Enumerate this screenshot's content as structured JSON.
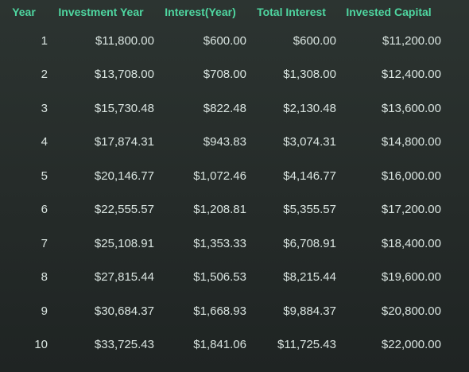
{
  "table": {
    "headers": {
      "year": "Year",
      "investment_year": "Investment Year",
      "interest_year": "Interest(Year)",
      "total_interest": "Total Interest",
      "invested_capital": "Invested Capital"
    },
    "rows": [
      {
        "year": "1",
        "investment_year": "$11,800.00",
        "interest_year": "$600.00",
        "total_interest": "$600.00",
        "invested_capital": "$11,200.00"
      },
      {
        "year": "2",
        "investment_year": "$13,708.00",
        "interest_year": "$708.00",
        "total_interest": "$1,308.00",
        "invested_capital": "$12,400.00"
      },
      {
        "year": "3",
        "investment_year": "$15,730.48",
        "interest_year": "$822.48",
        "total_interest": "$2,130.48",
        "invested_capital": "$13,600.00"
      },
      {
        "year": "4",
        "investment_year": "$17,874.31",
        "interest_year": "$943.83",
        "total_interest": "$3,074.31",
        "invested_capital": "$14,800.00"
      },
      {
        "year": "5",
        "investment_year": "$20,146.77",
        "interest_year": "$1,072.46",
        "total_interest": "$4,146.77",
        "invested_capital": "$16,000.00"
      },
      {
        "year": "6",
        "investment_year": "$22,555.57",
        "interest_year": "$1,208.81",
        "total_interest": "$5,355.57",
        "invested_capital": "$17,200.00"
      },
      {
        "year": "7",
        "investment_year": "$25,108.91",
        "interest_year": "$1,353.33",
        "total_interest": "$6,708.91",
        "invested_capital": "$18,400.00"
      },
      {
        "year": "8",
        "investment_year": "$27,815.44",
        "interest_year": "$1,506.53",
        "total_interest": "$8,215.44",
        "invested_capital": "$19,600.00"
      },
      {
        "year": "9",
        "investment_year": "$30,684.37",
        "interest_year": "$1,668.93",
        "total_interest": "$9,884.37",
        "invested_capital": "$20,800.00"
      },
      {
        "year": "10",
        "investment_year": "$33,725.43",
        "interest_year": "$1,841.06",
        "total_interest": "$11,725.43",
        "invested_capital": "$22,000.00"
      }
    ]
  },
  "colors": {
    "header_text": "#4fd6a0",
    "cell_text": "#d9e4e0",
    "background": "#2a312f"
  }
}
